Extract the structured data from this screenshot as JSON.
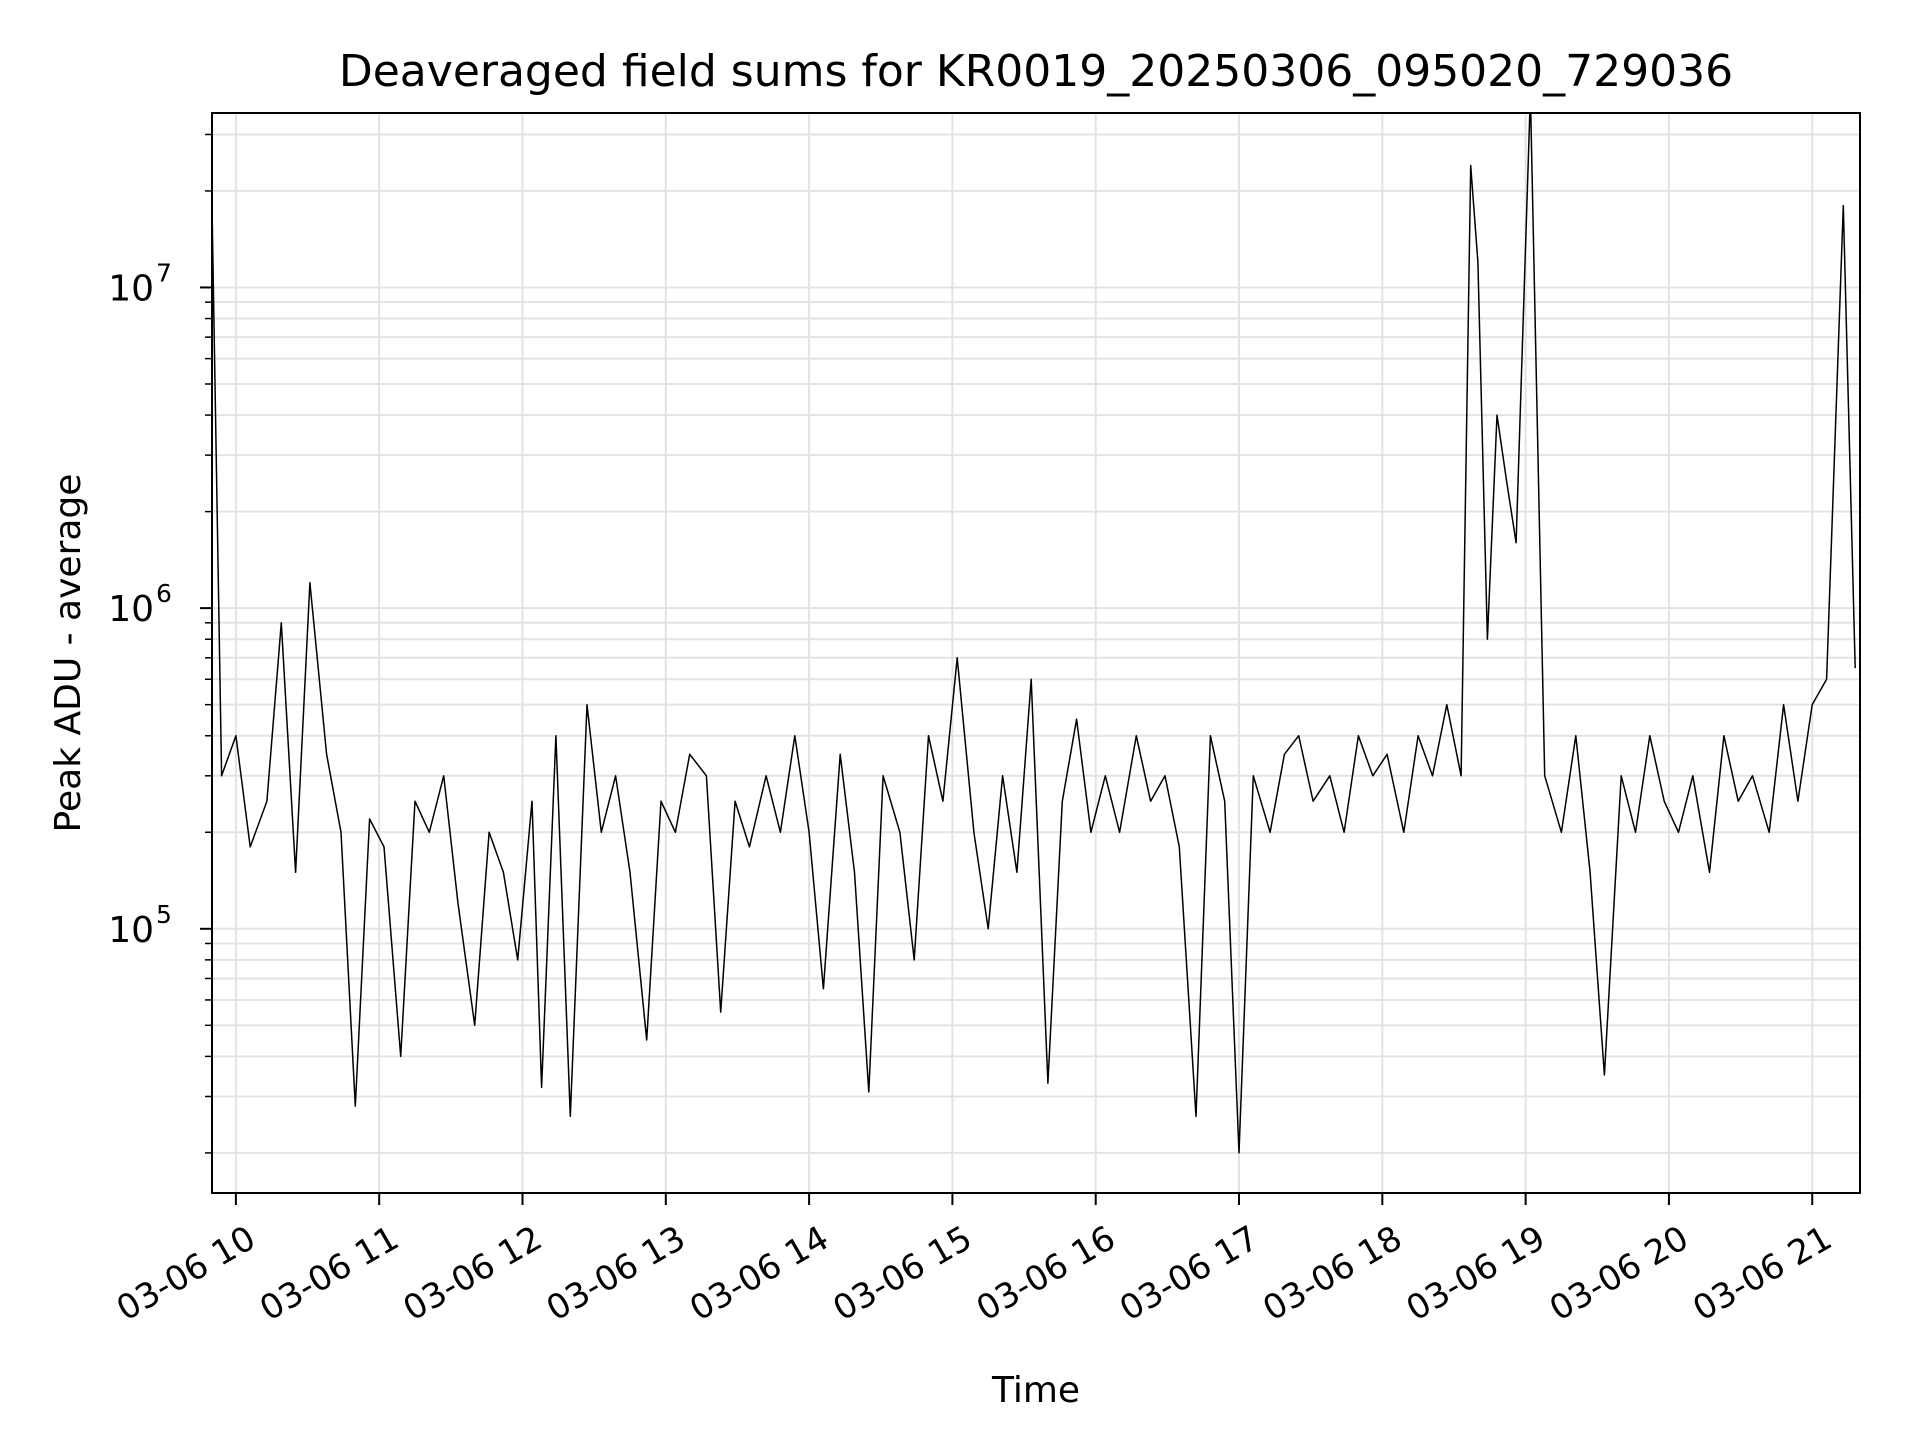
{
  "chart_data": {
    "type": "line",
    "title": "Deaveraged field sums for KR0019_20250306_095020_729036",
    "xlabel": "Time",
    "ylabel": "Peak ADU - average",
    "yscale": "log",
    "ylim": [
      15000,
      35000000
    ],
    "xlim": [
      "2025-03-06 09:50",
      "2025-03-06 21:20"
    ],
    "grid": true,
    "line_color": "#000000",
    "x_ticks": [
      {
        "value": "2025-03-06 10:00",
        "label": "03-06 10"
      },
      {
        "value": "2025-03-06 11:00",
        "label": "03-06 11"
      },
      {
        "value": "2025-03-06 12:00",
        "label": "03-06 12"
      },
      {
        "value": "2025-03-06 13:00",
        "label": "03-06 13"
      },
      {
        "value": "2025-03-06 14:00",
        "label": "03-06 14"
      },
      {
        "value": "2025-03-06 15:00",
        "label": "03-06 15"
      },
      {
        "value": "2025-03-06 16:00",
        "label": "03-06 16"
      },
      {
        "value": "2025-03-06 17:00",
        "label": "03-06 17"
      },
      {
        "value": "2025-03-06 18:00",
        "label": "03-06 18"
      },
      {
        "value": "2025-03-06 19:00",
        "label": "03-06 19"
      },
      {
        "value": "2025-03-06 20:00",
        "label": "03-06 20"
      },
      {
        "value": "2025-03-06 21:00",
        "label": "03-06 21"
      }
    ],
    "y_ticks": [
      {
        "value": 100000,
        "base": "10",
        "exp": "5"
      },
      {
        "value": 1000000,
        "base": "10",
        "exp": "6"
      },
      {
        "value": 10000000,
        "base": "10",
        "exp": "7"
      }
    ],
    "series": [
      {
        "x": [
          "2025-03-06 09:50",
          "2025-03-06 09:54",
          "2025-03-06 10:00",
          "2025-03-06 10:06",
          "2025-03-06 10:13",
          "2025-03-06 10:19",
          "2025-03-06 10:25",
          "2025-03-06 10:31",
          "2025-03-06 10:38",
          "2025-03-06 10:44",
          "2025-03-06 10:50",
          "2025-03-06 10:56",
          "2025-03-06 11:02",
          "2025-03-06 11:09",
          "2025-03-06 11:15",
          "2025-03-06 11:21",
          "2025-03-06 11:27",
          "2025-03-06 11:33",
          "2025-03-06 11:40",
          "2025-03-06 11:46",
          "2025-03-06 11:52",
          "2025-03-06 11:58",
          "2025-03-06 12:04",
          "2025-03-06 12:08",
          "2025-03-06 12:14",
          "2025-03-06 12:20",
          "2025-03-06 12:27",
          "2025-03-06 12:33",
          "2025-03-06 12:39",
          "2025-03-06 12:45",
          "2025-03-06 12:52",
          "2025-03-06 12:58",
          "2025-03-06 13:04",
          "2025-03-06 13:10",
          "2025-03-06 13:17",
          "2025-03-06 13:23",
          "2025-03-06 13:29",
          "2025-03-06 13:35",
          "2025-03-06 13:42",
          "2025-03-06 13:48",
          "2025-03-06 13:54",
          "2025-03-06 14:00",
          "2025-03-06 14:06",
          "2025-03-06 14:13",
          "2025-03-06 14:19",
          "2025-03-06 14:25",
          "2025-03-06 14:31",
          "2025-03-06 14:38",
          "2025-03-06 14:44",
          "2025-03-06 14:50",
          "2025-03-06 14:56",
          "2025-03-06 15:02",
          "2025-03-06 15:09",
          "2025-03-06 15:15",
          "2025-03-06 15:21",
          "2025-03-06 15:27",
          "2025-03-06 15:33",
          "2025-03-06 15:40",
          "2025-03-06 15:46",
          "2025-03-06 15:52",
          "2025-03-06 15:58",
          "2025-03-06 16:04",
          "2025-03-06 16:10",
          "2025-03-06 16:17",
          "2025-03-06 16:23",
          "2025-03-06 16:29",
          "2025-03-06 16:35",
          "2025-03-06 16:42",
          "2025-03-06 16:48",
          "2025-03-06 16:54",
          "2025-03-06 17:00",
          "2025-03-06 17:06",
          "2025-03-06 17:13",
          "2025-03-06 17:19",
          "2025-03-06 17:25",
          "2025-03-06 17:31",
          "2025-03-06 17:38",
          "2025-03-06 17:44",
          "2025-03-06 17:50",
          "2025-03-06 17:56",
          "2025-03-06 18:02",
          "2025-03-06 18:09",
          "2025-03-06 18:15",
          "2025-03-06 18:21",
          "2025-03-06 18:27",
          "2025-03-06 18:33",
          "2025-03-06 18:37",
          "2025-03-06 18:40",
          "2025-03-06 18:44",
          "2025-03-06 18:48",
          "2025-03-06 18:52",
          "2025-03-06 18:56",
          "2025-03-06 19:02",
          "2025-03-06 19:08",
          "2025-03-06 19:15",
          "2025-03-06 19:21",
          "2025-03-06 19:27",
          "2025-03-06 19:33",
          "2025-03-06 19:40",
          "2025-03-06 19:46",
          "2025-03-06 19:52",
          "2025-03-06 19:58",
          "2025-03-06 20:04",
          "2025-03-06 20:10",
          "2025-03-06 20:17",
          "2025-03-06 20:23",
          "2025-03-06 20:29",
          "2025-03-06 20:35",
          "2025-03-06 20:42",
          "2025-03-06 20:48",
          "2025-03-06 20:54",
          "2025-03-06 21:00",
          "2025-03-06 21:06",
          "2025-03-06 21:13",
          "2025-03-06 21:18"
        ],
        "y": [
          18000000,
          300000,
          400000,
          180000,
          250000,
          900000,
          150000,
          1200000,
          350000,
          200000,
          28000,
          220000,
          180000,
          40000,
          250000,
          200000,
          300000,
          120000,
          50000,
          200000,
          150000,
          80000,
          250000,
          32000,
          400000,
          26000,
          500000,
          200000,
          300000,
          150000,
          45000,
          250000,
          200000,
          350000,
          300000,
          55000,
          250000,
          180000,
          300000,
          200000,
          400000,
          200000,
          65000,
          350000,
          150000,
          31000,
          300000,
          200000,
          80000,
          400000,
          250000,
          700000,
          200000,
          100000,
          300000,
          150000,
          600000,
          33000,
          250000,
          450000,
          200000,
          300000,
          200000,
          400000,
          250000,
          300000,
          180000,
          26000,
          400000,
          250000,
          20000,
          300000,
          200000,
          350000,
          400000,
          250000,
          300000,
          200000,
          400000,
          300000,
          350000,
          200000,
          400000,
          300000,
          500000,
          300000,
          24000000,
          12000000,
          800000,
          4000000,
          2500000,
          1600000,
          40000000,
          300000,
          200000,
          400000,
          150000,
          35000,
          300000,
          200000,
          400000,
          250000,
          200000,
          300000,
          150000,
          400000,
          250000,
          300000,
          200000,
          500000,
          250000,
          500000,
          600000,
          18000000,
          650000
        ]
      }
    ]
  }
}
